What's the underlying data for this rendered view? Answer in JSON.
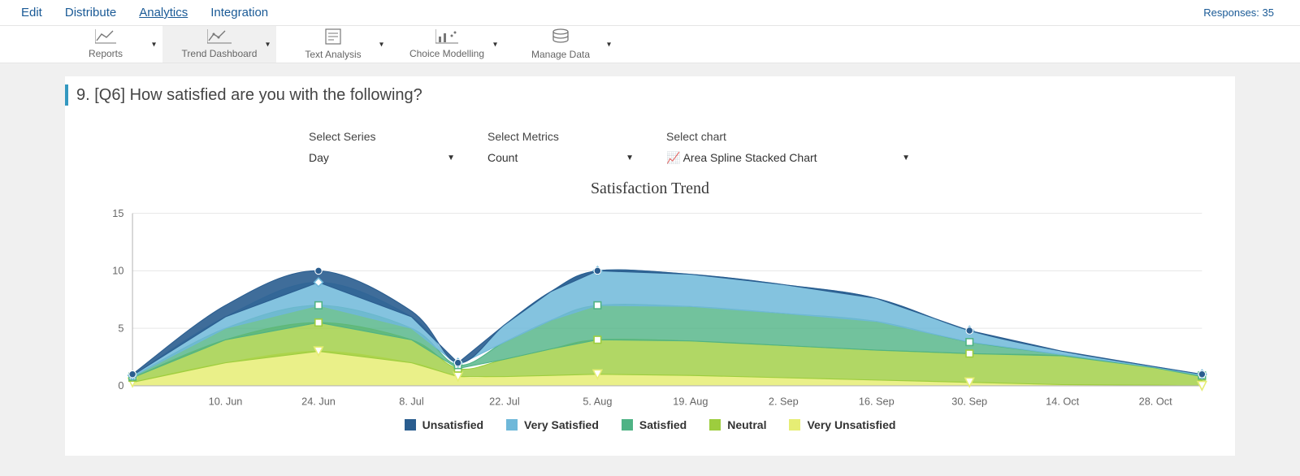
{
  "nav": {
    "tabs": [
      "Edit",
      "Distribute",
      "Analytics",
      "Integration"
    ],
    "active_index": 2,
    "responses_label": "Responses: 35"
  },
  "toolbar": {
    "items": [
      {
        "label": "Reports",
        "active": false
      },
      {
        "label": "Trend Dashboard",
        "active": true
      },
      {
        "label": "Text Analysis",
        "active": false
      },
      {
        "label": "Choice Modelling",
        "active": false
      },
      {
        "label": "Manage Data",
        "active": false
      }
    ]
  },
  "question": {
    "number": "9.",
    "code": "[Q6]",
    "text": "How satisfied are you with the following?"
  },
  "selects": {
    "series": {
      "label": "Select Series",
      "value": "Day"
    },
    "metrics": {
      "label": "Select Metrics",
      "value": "Count"
    },
    "chart": {
      "label": "Select chart",
      "value": "Area Spline Stacked Chart"
    }
  },
  "chart": {
    "type": "area-spline-stacked",
    "title": "Satisfaction Trend",
    "title_fontsize": 20,
    "background": "#ffffff",
    "grid_color": "#e6e6e6",
    "axis_color": "#b8b8b8",
    "tick_font_color": "#666666",
    "tick_fontsize": 12,
    "y": {
      "min": 0,
      "max": 15,
      "ticks": [
        0,
        5,
        10,
        15
      ]
    },
    "x_labels": [
      "10. Jun",
      "24. Jun",
      "8. Jul",
      "22. Jul",
      "5. Aug",
      "19. Aug",
      "2. Sep",
      "16. Sep",
      "30. Sep",
      "14. Oct",
      "28. Oct"
    ],
    "x_points": [
      0,
      1,
      2,
      3,
      3.5,
      4,
      4.5,
      5,
      6,
      7,
      8,
      9,
      10,
      11,
      11.5
    ],
    "series": [
      {
        "name": "Very Unsatisfied",
        "color": "#e6ed74",
        "opacity": 0.85,
        "marker": "triangle-down",
        "values": [
          0.3,
          2.0,
          3.0,
          2.0,
          0.8,
          0.8,
          0.9,
          1.0,
          0.9,
          0.7,
          0.5,
          0.3,
          0.1,
          0.05,
          0.0
        ]
      },
      {
        "name": "Neutral",
        "color": "#9dcd3e",
        "opacity": 0.8,
        "marker": "square",
        "values": [
          0.4,
          2.0,
          2.5,
          2.0,
          0.7,
          1.5,
          2.3,
          3.0,
          3.0,
          2.8,
          2.6,
          2.5,
          2.5,
          1.5,
          0.8
        ]
      },
      {
        "name": "Satisfied",
        "color": "#4fb385",
        "opacity": 0.8,
        "marker": "square",
        "values": [
          0.1,
          1.0,
          1.5,
          1.0,
          0.3,
          1.5,
          2.5,
          3.0,
          3.0,
          2.8,
          2.5,
          1.0,
          0.1,
          0.05,
          0.1
        ]
      },
      {
        "name": "Very Satisfied",
        "color": "#6fb8d9",
        "opacity": 0.85,
        "marker": "diamond",
        "values": [
          0.1,
          1.0,
          2.0,
          1.0,
          0.2,
          1.5,
          2.5,
          3.0,
          2.8,
          2.5,
          2.0,
          1.0,
          0.3,
          0.05,
          0.1
        ]
      },
      {
        "name": "Unsatisfied",
        "color": "#2a5d8f",
        "opacity": 0.9,
        "marker": "circle",
        "values": [
          0.1,
          1.0,
          1.0,
          0.5,
          0.0,
          0.0,
          0.0,
          0.0,
          0.0,
          0.0,
          0.0,
          0.0,
          0.0,
          0.0,
          0.0
        ]
      }
    ],
    "legend_order": [
      "Unsatisfied",
      "Very Satisfied",
      "Satisfied",
      "Neutral",
      "Very Unsatisfied"
    ],
    "marker_x_points": [
      0,
      2,
      3.5,
      5,
      9,
      11.5
    ]
  }
}
